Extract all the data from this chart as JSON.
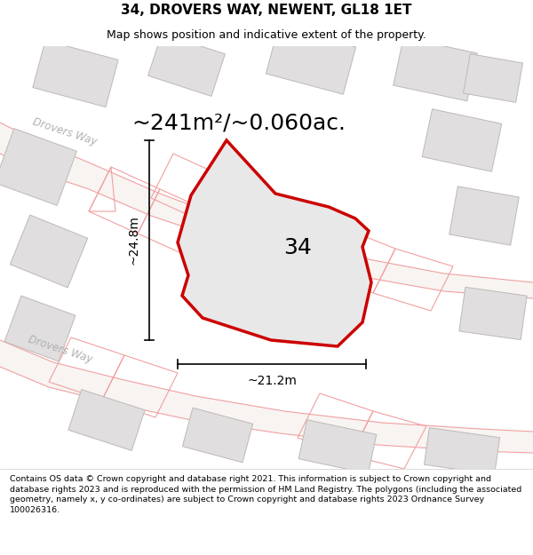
{
  "title": "34, DROVERS WAY, NEWENT, GL18 1ET",
  "subtitle": "Map shows position and indicative extent of the property.",
  "area_label": "~241m²/~0.060ac.",
  "number_label": "34",
  "width_label": "~21.2m",
  "height_label": "~24.8m",
  "footer": "Contains OS data © Crown copyright and database right 2021. This information is subject to Crown copyright and database rights 2023 and is reproduced with the permission of HM Land Registry. The polygons (including the associated geometry, namely x, y co-ordinates) are subject to Crown copyright and database rights 2023 Ordnance Survey 100026316.",
  "map_bg": "#f7f6f5",
  "property_fill": "#e8e8e8",
  "property_edge": "#cc0000",
  "road_line_color": "#f0a0a0",
  "building_fill": "#e0dede",
  "building_edge": "#c0b8b8",
  "road_label_color": "#b0b0b0",
  "title_fontsize": 11,
  "subtitle_fontsize": 9,
  "area_fontsize": 18,
  "number_fontsize": 18,
  "dim_fontsize": 10,
  "footer_fontsize": 6.8
}
